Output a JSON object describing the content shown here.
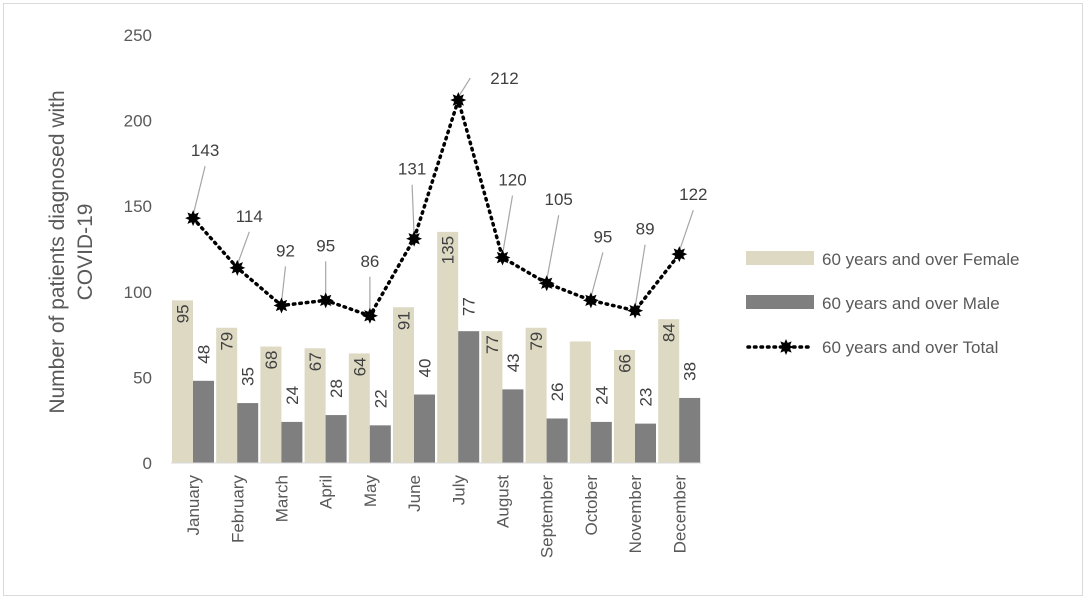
{
  "chart_data": {
    "type": "bar",
    "title": "",
    "ylabel": "Number of patients diagnosed with COVID-19",
    "ylabel_lines": [
      "Number of patients diagnosed with",
      "COVID-19"
    ],
    "xlabel": "",
    "ylim": [
      0,
      250
    ],
    "yticks": [
      0,
      50,
      100,
      150,
      200,
      250
    ],
    "grid": false,
    "legend_position": "right",
    "categories": [
      "January",
      "February",
      "March",
      "April",
      "May",
      "June",
      "July",
      "August",
      "September",
      "October",
      "November",
      "December"
    ],
    "series": [
      {
        "name": "60 years and over Female",
        "type": "bar",
        "color": "#ddd9c3",
        "values": [
          95,
          79,
          68,
          67,
          64,
          91,
          135,
          77,
          79,
          71,
          66,
          84
        ],
        "labels": [
          "95",
          "79",
          "68",
          "67",
          "64",
          "91",
          "135",
          "77",
          "79",
          "",
          "66",
          "84"
        ]
      },
      {
        "name": "60 years and over Male",
        "type": "bar",
        "color": "#7f7f7f",
        "values": [
          48,
          35,
          24,
          28,
          22,
          40,
          77,
          43,
          26,
          24,
          23,
          38
        ],
        "labels": [
          "48",
          "35",
          "24",
          "28",
          "22",
          "40",
          "77",
          "43",
          "26",
          "24",
          "23",
          "38"
        ]
      },
      {
        "name": "60 years and over Total",
        "type": "line",
        "color": "#000000",
        "values": [
          143,
          114,
          92,
          95,
          86,
          131,
          212,
          120,
          105,
          95,
          89,
          122
        ],
        "labels": [
          "143",
          "114",
          "92",
          "95",
          "86",
          "131",
          "212",
          "120",
          "105",
          "95",
          "89",
          "122"
        ]
      }
    ]
  }
}
